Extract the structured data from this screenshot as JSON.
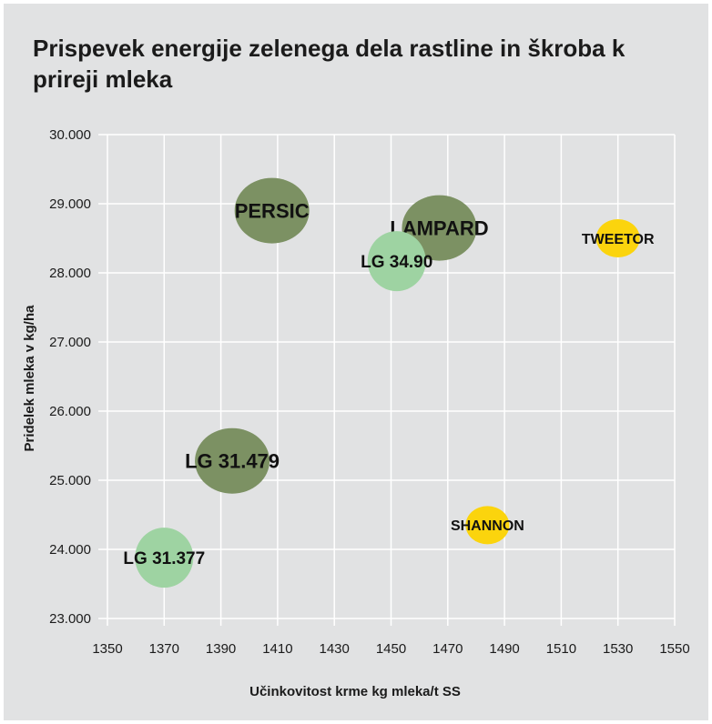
{
  "title": "Prispevek energije zelenega dela rastline in škroba k prireji mleka",
  "chart_data": {
    "type": "scatter",
    "title": "Prispevek energije zelenega dela rastline in škroba k prireji mleka",
    "xlabel": "Učinkovitost krme kg mleka/t SS",
    "ylabel": "Pridelek mleka v kg/ha",
    "xlim": [
      1350,
      1550
    ],
    "ylim": [
      23000,
      30000
    ],
    "x_ticks": [
      1350,
      1370,
      1390,
      1410,
      1430,
      1450,
      1470,
      1490,
      1510,
      1530,
      1550
    ],
    "y_ticks": [
      {
        "value": 23000,
        "label": "23.000"
      },
      {
        "value": 24000,
        "label": "24.000"
      },
      {
        "value": 25000,
        "label": "25.000"
      },
      {
        "value": 26000,
        "label": "26.000"
      },
      {
        "value": 27000,
        "label": "27.000"
      },
      {
        "value": 28000,
        "label": "28.000"
      },
      {
        "value": 29000,
        "label": "29.000"
      },
      {
        "value": 30000,
        "label": "30.000"
      }
    ],
    "grid": true,
    "points": [
      {
        "label": "PERSIC",
        "x": 1408,
        "y": 28900,
        "size": "large",
        "color": "#7c9163"
      },
      {
        "label": "LAMPARD",
        "x": 1467,
        "y": 28650,
        "size": "large",
        "color": "#7c9163"
      },
      {
        "label": "LG 34.90",
        "x": 1452,
        "y": 28170,
        "size": "medium",
        "color": "#9ed3a2"
      },
      {
        "label": "TWEETOR",
        "x": 1530,
        "y": 28500,
        "size": "small",
        "color": "#fbd40d"
      },
      {
        "label": "LG 31.479",
        "x": 1394,
        "y": 25280,
        "size": "large",
        "color": "#7c9163"
      },
      {
        "label": "SHANNON",
        "x": 1484,
        "y": 24350,
        "size": "small",
        "color": "#fbd40d"
      },
      {
        "label": "LG 31.377",
        "x": 1370,
        "y": 23880,
        "size": "medium",
        "color": "#9ed3a2"
      }
    ]
  }
}
